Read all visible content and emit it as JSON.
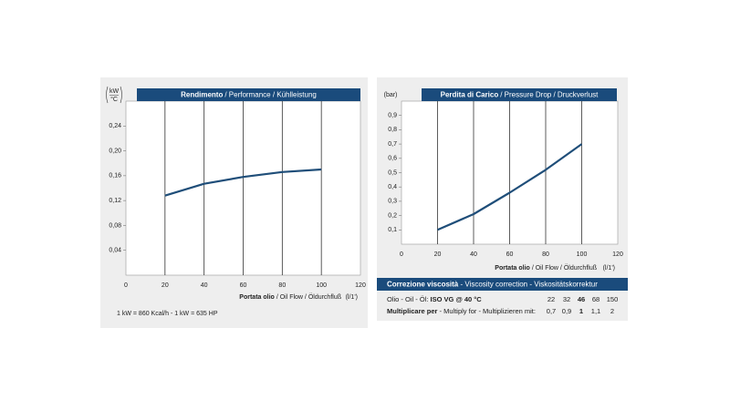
{
  "chart_data": [
    {
      "type": "line",
      "title": {
        "main": "Rendimento",
        "rest": "/ Performance / Kühlleistung"
      },
      "y_unit": [
        "kW",
        "°C"
      ],
      "x_label": {
        "main": "Portata olio",
        "rest": "/ Oil Flow / Öldurchfluß",
        "unit": "(l/1')"
      },
      "x": [
        20,
        40,
        60,
        80,
        100
      ],
      "series": [
        {
          "color": "#1f4e79",
          "values": [
            0.128,
            0.147,
            0.158,
            0.166,
            0.17
          ]
        }
      ],
      "xlim": [
        0,
        120
      ],
      "xticks": [
        0,
        20,
        40,
        60,
        80,
        100,
        120
      ],
      "ylim": [
        0,
        0.28
      ],
      "yticks": [
        {
          "value": 0.04,
          "label": "0,04"
        },
        {
          "value": 0.08,
          "label": "0,08"
        },
        {
          "value": 0.12,
          "label": "0,12"
        },
        {
          "value": 0.16,
          "label": "0,16"
        },
        {
          "value": 0.2,
          "label": "0,20"
        },
        {
          "value": 0.24,
          "label": "0,24"
        }
      ],
      "grid": true
    },
    {
      "type": "line",
      "title": {
        "main": "Perdita di Carico",
        "rest": "/ Pressure Drop / Druckverlust"
      },
      "y_unit": [
        "(bar)"
      ],
      "x_label": {
        "main": "Portata olio",
        "rest": "/ Oil Flow / Öldurchfluß",
        "unit": "(l/1')"
      },
      "x": [
        20,
        40,
        60,
        80,
        100
      ],
      "series": [
        {
          "color": "#1f4e79",
          "values": [
            0.1,
            0.21,
            0.36,
            0.52,
            0.7
          ]
        }
      ],
      "xlim": [
        0,
        120
      ],
      "xticks": [
        0,
        20,
        40,
        60,
        80,
        100,
        120
      ],
      "ylim": [
        0,
        1
      ],
      "yticks": [
        {
          "value": 0.1,
          "label": "0,1"
        },
        {
          "value": 0.2,
          "label": "0,2"
        },
        {
          "value": 0.3,
          "label": "0,3"
        },
        {
          "value": 0.4,
          "label": "0,4"
        },
        {
          "value": 0.5,
          "label": "0,5"
        },
        {
          "value": 0.6,
          "label": "0,6"
        },
        {
          "value": 0.7,
          "label": "0,7"
        },
        {
          "value": 0.8,
          "label": "0,8"
        },
        {
          "value": 0.9,
          "label": "0,9"
        }
      ],
      "grid": true
    }
  ],
  "footnote": "1 kW = 860 Kcal/h - 1 kW = 635 HP",
  "viscosity_table": {
    "title": {
      "main": "Correzione viscosità",
      "rest": " - Viscosity correction - Viskositätskorrektur"
    },
    "rows": [
      {
        "label": {
          "main": "Olio - Oil - Öl: ",
          "bold": "ISO VG @ 40 °C"
        },
        "cells": [
          "22",
          "32",
          "46",
          "68",
          "150"
        ]
      },
      {
        "label": {
          "main": "Multiplicare per",
          "bold": " - Multiply for - Multiplizieren mit:"
        },
        "cells": [
          "0,7",
          "0,9",
          "1",
          "1,1",
          "2"
        ]
      }
    ]
  }
}
